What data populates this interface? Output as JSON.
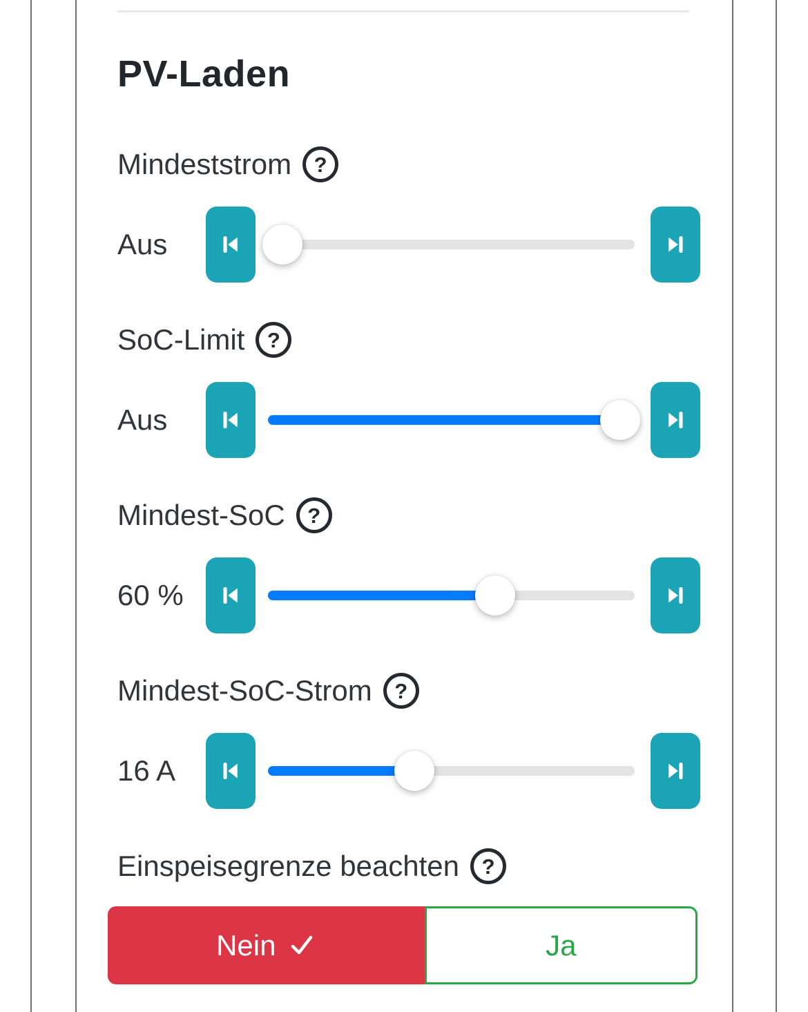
{
  "section": {
    "title": "PV-Laden",
    "help_glyph": "?"
  },
  "settings": [
    {
      "id": "mindeststrom",
      "label": "Mindeststrom",
      "value": "Aus",
      "percent": 4,
      "filled": false
    },
    {
      "id": "soc-limit",
      "label": "SoC-Limit",
      "value": "Aus",
      "percent": 96,
      "filled": true
    },
    {
      "id": "mindest-soc",
      "label": "Mindest-SoC",
      "value": "60 %",
      "percent": 62,
      "filled": true
    },
    {
      "id": "mindest-soc-strom",
      "label": "Mindest-SoC-Strom",
      "value": "16 A",
      "percent": 40,
      "filled": true
    }
  ],
  "toggle": {
    "label": "Einspeisegrenze beachten",
    "options": [
      {
        "label": "Nein",
        "selected": true
      },
      {
        "label": "Ja",
        "selected": false
      }
    ]
  },
  "colors": {
    "teal": "#1ba3b6",
    "blue": "#077bff",
    "track": "#e3e3e3",
    "red": "#dc3545",
    "green": "#28a745",
    "line": "#6a727c",
    "sep": "#e6e6e6"
  }
}
